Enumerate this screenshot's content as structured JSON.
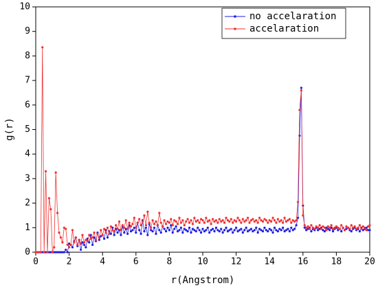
{
  "chart_data": {
    "type": "line",
    "xlabel": "r(Angstrom)",
    "ylabel": "g(r)",
    "xlim": [
      0,
      20
    ],
    "xticks": [
      0,
      2,
      4,
      6,
      8,
      10,
      12,
      14,
      16,
      18,
      20
    ],
    "ylim": [
      0,
      10
    ],
    "yticks": [
      0,
      1,
      2,
      3,
      4,
      5,
      6,
      7,
      8,
      9,
      10
    ],
    "legend": "upper right",
    "x": [
      0,
      0.1,
      0.2,
      0.3,
      0.4,
      0.5,
      0.6,
      0.7,
      0.8,
      0.9,
      1,
      1.1,
      1.2,
      1.3,
      1.4,
      1.5,
      1.6,
      1.7,
      1.8,
      1.9,
      2,
      2.1,
      2.2,
      2.3,
      2.4,
      2.5,
      2.6,
      2.7,
      2.8,
      2.9,
      3,
      3.1,
      3.2,
      3.3,
      3.4,
      3.5,
      3.6,
      3.7,
      3.8,
      3.9,
      4,
      4.1,
      4.2,
      4.3,
      4.4,
      4.5,
      4.6,
      4.7,
      4.8,
      4.9,
      5,
      5.1,
      5.2,
      5.3,
      5.4,
      5.5,
      5.6,
      5.7,
      5.8,
      5.9,
      6,
      6.1,
      6.2,
      6.3,
      6.4,
      6.5,
      6.6,
      6.7,
      6.8,
      6.9,
      7,
      7.1,
      7.2,
      7.3,
      7.4,
      7.5,
      7.6,
      7.7,
      7.8,
      7.9,
      8,
      8.1,
      8.2,
      8.3,
      8.4,
      8.5,
      8.6,
      8.7,
      8.8,
      8.9,
      9,
      9.1,
      9.2,
      9.3,
      9.4,
      9.5,
      9.6,
      9.7,
      9.8,
      9.9,
      10,
      10.1,
      10.2,
      10.3,
      10.4,
      10.5,
      10.6,
      10.7,
      10.8,
      10.9,
      11,
      11.1,
      11.2,
      11.3,
      11.4,
      11.5,
      11.6,
      11.7,
      11.8,
      11.9,
      12,
      12.1,
      12.2,
      12.3,
      12.4,
      12.5,
      12.6,
      12.7,
      12.8,
      12.9,
      13,
      13.1,
      13.2,
      13.3,
      13.4,
      13.5,
      13.6,
      13.7,
      13.8,
      13.9,
      14,
      14.1,
      14.2,
      14.3,
      14.4,
      14.5,
      14.6,
      14.7,
      14.8,
      14.9,
      15,
      15.1,
      15.2,
      15.3,
      15.4,
      15.5,
      15.6,
      15.7,
      15.8,
      15.9,
      16,
      16.1,
      16.2,
      16.3,
      16.4,
      16.5,
      16.6,
      16.7,
      16.8,
      16.9,
      17,
      17.1,
      17.2,
      17.3,
      17.4,
      17.5,
      17.6,
      17.7,
      17.8,
      17.9,
      18,
      18.1,
      18.2,
      18.3,
      18.4,
      18.5,
      18.6,
      18.7,
      18.8,
      18.9,
      19,
      19.1,
      19.2,
      19.3,
      19.4,
      19.5,
      19.6,
      19.7,
      19.8,
      19.9,
      20
    ],
    "series": [
      {
        "name": "no accelaration",
        "color": "#1f1fe0",
        "values": [
          0,
          0,
          0,
          0,
          0,
          0,
          0,
          0,
          0,
          0,
          0,
          0,
          0,
          0,
          0,
          0,
          0,
          0,
          0.1,
          0,
          0.35,
          0.3,
          0.2,
          0.45,
          0.6,
          0.25,
          0.5,
          0.1,
          0.4,
          0.3,
          0.2,
          0.55,
          0.4,
          0.7,
          0.3,
          0.6,
          0.45,
          0.8,
          0.5,
          0.65,
          0.7,
          0.55,
          0.9,
          0.6,
          0.85,
          0.75,
          1.0,
          0.7,
          0.95,
          0.8,
          0.9,
          0.7,
          1.05,
          0.8,
          0.95,
          0.75,
          1.1,
          0.85,
          0.9,
          1.0,
          0.8,
          1.2,
          0.9,
          0.75,
          1.3,
          0.85,
          1.0,
          0.7,
          1.15,
          0.9,
          0.85,
          1.0,
          0.75,
          1.1,
          0.9,
          0.8,
          1.05,
          0.95,
          0.85,
          1.0,
          0.9,
          1.1,
          0.8,
          0.95,
          1.05,
          0.85,
          0.9,
          1.0,
          0.8,
          0.95,
          0.9,
          0.85,
          1.0,
          0.8,
          0.95,
          0.9,
          0.85,
          1.0,
          0.9,
          0.8,
          0.95,
          0.85,
          0.9,
          1.0,
          0.8,
          0.9,
          0.95,
          0.85,
          1.0,
          0.9,
          0.85,
          0.95,
          0.8,
          0.9,
          1.0,
          0.85,
          0.9,
          0.95,
          0.8,
          0.9,
          1.0,
          0.85,
          0.9,
          0.95,
          0.8,
          0.9,
          1.0,
          0.85,
          0.9,
          0.95,
          0.85,
          0.9,
          1.0,
          0.8,
          0.95,
          0.9,
          0.85,
          1.0,
          0.9,
          0.85,
          0.95,
          0.9,
          0.8,
          1.0,
          0.9,
          0.85,
          0.95,
          0.9,
          1.0,
          0.85,
          0.9,
          0.95,
          0.85,
          1.0,
          0.9,
          0.95,
          1.1,
          1.4,
          4.75,
          6.7,
          1.9,
          1.0,
          0.9,
          0.95,
          1.0,
          0.85,
          0.95,
          0.9,
          1.0,
          0.9,
          0.95,
          1.0,
          0.9,
          0.85,
          1.0,
          0.95,
          0.9,
          1.0,
          0.85,
          0.95,
          1.0,
          0.9,
          0.95,
          0.85,
          1.0,
          0.9,
          0.95,
          1.0,
          0.9,
          0.85,
          0.95,
          1.0,
          0.9,
          0.95,
          0.85,
          1.0,
          0.9,
          0.95,
          1.0,
          0.9,
          0.9
        ]
      },
      {
        "name": "accelaration",
        "color": "#f03030",
        "values": [
          0,
          0,
          0,
          0,
          8.35,
          0,
          3.3,
          0,
          2.2,
          1.75,
          0,
          0.2,
          3.25,
          1.6,
          0.8,
          0.6,
          0.4,
          1.0,
          0.95,
          0.3,
          0.2,
          0.3,
          0.9,
          0.4,
          0.6,
          0.3,
          0.5,
          0.35,
          0.7,
          0.4,
          0.5,
          0.45,
          0.7,
          0.55,
          0.6,
          0.8,
          0.5,
          0.75,
          0.6,
          0.9,
          0.7,
          0.95,
          0.8,
          1.0,
          0.75,
          1.05,
          0.9,
          0.85,
          1.1,
          0.95,
          1.25,
          0.9,
          1.1,
          1.0,
          1.3,
          0.95,
          1.2,
          1.05,
          1.15,
          1.4,
          1.0,
          1.2,
          1.35,
          1.1,
          1.25,
          1.5,
          1.1,
          1.65,
          1.2,
          1.0,
          1.3,
          1.15,
          1.25,
          1.1,
          1.6,
          1.2,
          1.05,
          1.3,
          1.15,
          1.25,
          1.2,
          1.35,
          1.1,
          1.3,
          1.25,
          1.15,
          1.4,
          1.2,
          1.3,
          1.1,
          1.25,
          1.35,
          1.2,
          1.3,
          1.15,
          1.4,
          1.25,
          1.3,
          1.2,
          1.35,
          1.3,
          1.2,
          1.4,
          1.25,
          1.3,
          1.15,
          1.35,
          1.25,
          1.3,
          1.2,
          1.35,
          1.25,
          1.3,
          1.2,
          1.4,
          1.3,
          1.25,
          1.35,
          1.2,
          1.3,
          1.25,
          1.4,
          1.3,
          1.2,
          1.35,
          1.25,
          1.3,
          1.4,
          1.2,
          1.3,
          1.35,
          1.25,
          1.3,
          1.2,
          1.4,
          1.3,
          1.25,
          1.35,
          1.3,
          1.2,
          1.3,
          1.25,
          1.4,
          1.3,
          1.2,
          1.35,
          1.25,
          1.3,
          1.2,
          1.4,
          1.25,
          1.3,
          1.35,
          1.2,
          1.3,
          1.25,
          1.3,
          2.05,
          5.8,
          6.6,
          1.5,
          1.1,
          1.0,
          1.05,
          0.95,
          1.1,
          1.0,
          0.95,
          1.05,
          1.0,
          1.1,
          0.95,
          1.05,
          1.0,
          0.9,
          1.05,
          1.0,
          1.1,
          0.95,
          1.0,
          1.05,
          1.0,
          0.95,
          1.1,
          1.0,
          0.9,
          1.05,
          1.0,
          0.95,
          1.1,
          1.0,
          1.05,
          0.95,
          1.0,
          1.1,
          0.95,
          1.05,
          1.0,
          0.9,
          1.05,
          1.1
        ]
      }
    ]
  }
}
